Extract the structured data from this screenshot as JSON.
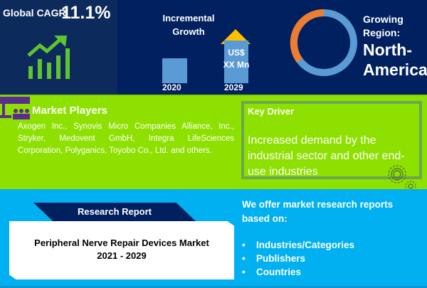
{
  "cagr": {
    "label": "Global CAGR",
    "value": "11.1%"
  },
  "growth": {
    "title_line1": "Incremental",
    "title_line2": "Growth",
    "value_line1": "US$",
    "value_line2": "XX Mn",
    "year_start": "2020",
    "year_end": "2029"
  },
  "region": {
    "label_line1": "Growing",
    "label_line2": "Region:",
    "name_line1": "North-",
    "name_line2": "America"
  },
  "market_players": {
    "title": "Market Players",
    "text": "Axogen Inc., Synovis Micro Companies Alliance, Inc., Stryker, Medovent GmbH, Integra LifeSciences Corporation, Polyganics, Toyobo Co., Ltd. and others."
  },
  "key_driver": {
    "title": "Key Driver",
    "text": "Increased demand by the industrial sector and other end-use industries"
  },
  "report": {
    "tab": "Research Report",
    "title_line1": "Peripheral Nerve Repair Devices Market",
    "title_line2": "2021 - 2029"
  },
  "offer": {
    "title": "We offer market research reports based on:",
    "items": [
      "Industries/Categories",
      "Publishers",
      "Countries"
    ]
  },
  "colors": {
    "navy": "#002060",
    "green": "#8ee000",
    "cyan": "#00b0f0",
    "orange": "#ed7d31",
    "blue": "#5b9bd5",
    "gold": "#ffc000",
    "icon_green": "#5fc42f"
  }
}
